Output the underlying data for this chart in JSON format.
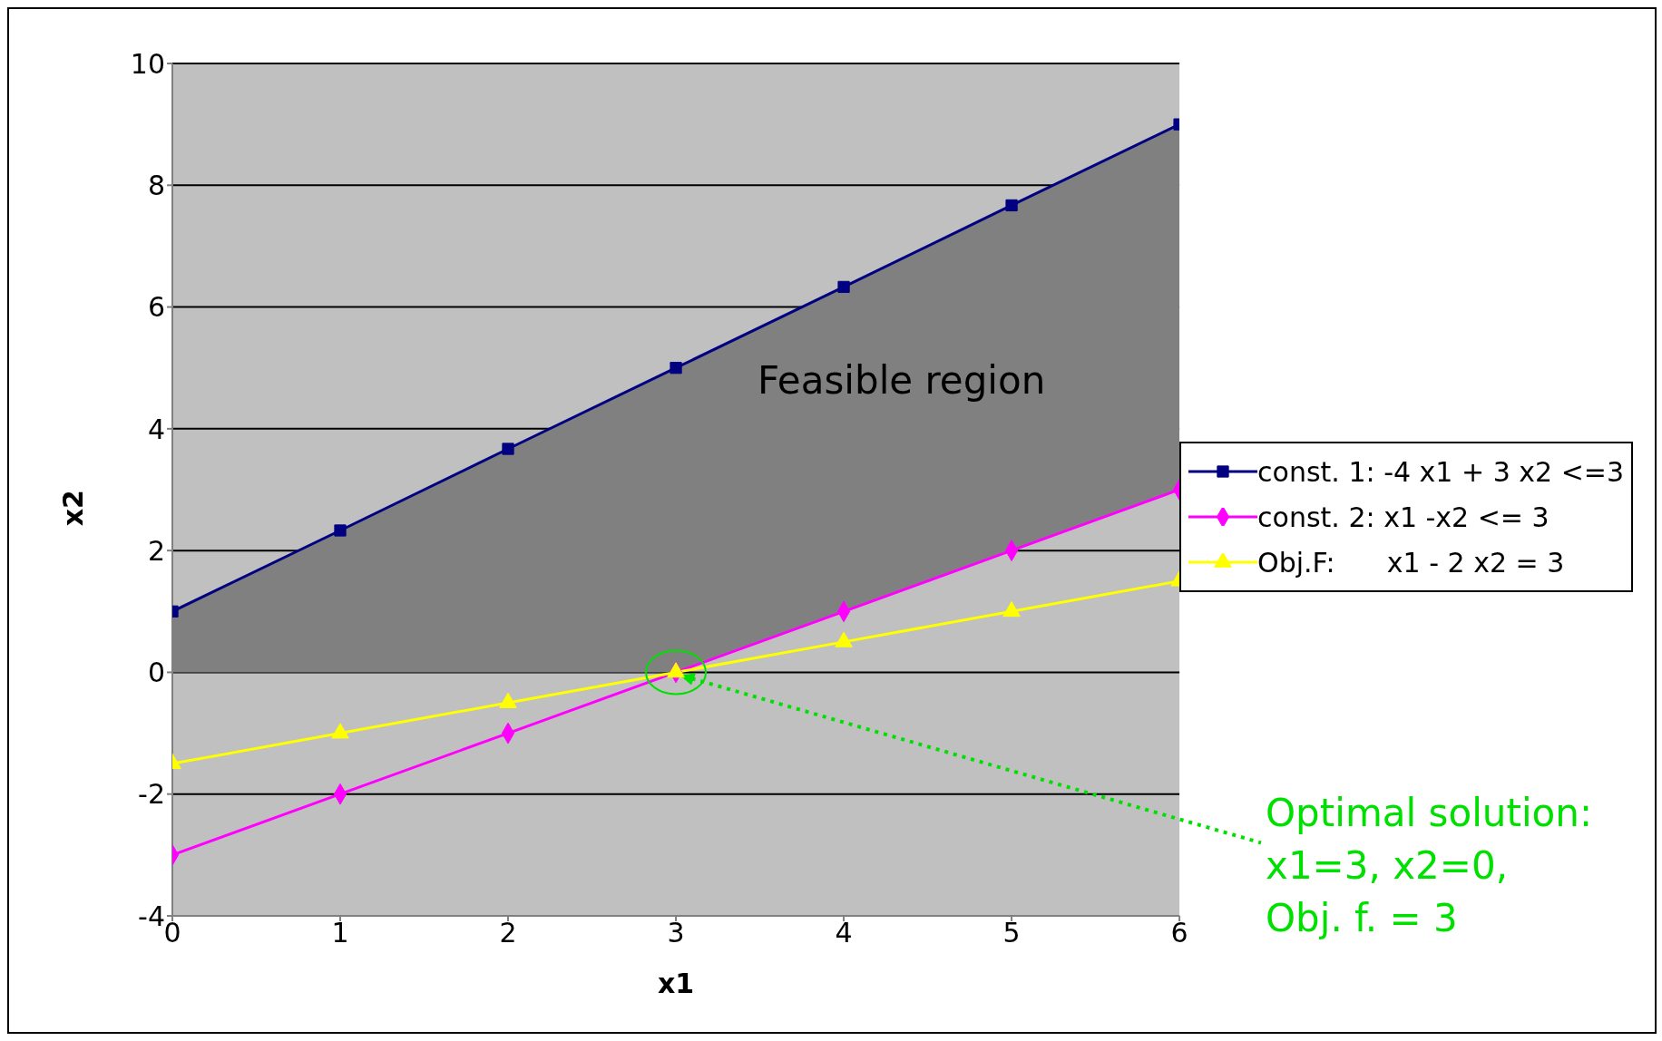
{
  "chart_data": {
    "type": "line",
    "xlabel": "x1",
    "ylabel": "x2",
    "x": [
      0,
      1,
      2,
      3,
      4,
      5,
      6
    ],
    "xlim": [
      0,
      6
    ],
    "xticks": [
      0,
      1,
      2,
      3,
      4,
      5,
      6
    ],
    "ylim": [
      -4,
      10
    ],
    "yticks": [
      -4,
      -2,
      0,
      2,
      4,
      6,
      8,
      10
    ],
    "grid": "y",
    "legend": "right",
    "series": [
      {
        "name": "const. 1: -4 x1 + 3 x2 <=3",
        "color": "#000080",
        "marker": "square",
        "values": [
          1,
          2.33,
          3.67,
          5,
          6.33,
          7.67,
          9
        ],
        "lower": [
          0,
          0,
          0,
          0,
          1,
          2,
          3
        ],
        "upper": [
          1,
          2.33,
          3.67,
          5,
          6.33,
          7.67,
          9
        ]
      },
      {
        "name": "const. 2: x1 -x2 <= 3",
        "color": "#ff00ff",
        "marker": "diamond",
        "values": [
          -3,
          -2,
          -1,
          0,
          1,
          2,
          3
        ]
      },
      {
        "name": "Obj.F:      x1 - 2 x2 = 3",
        "color": "#ffff00",
        "marker": "triangle",
        "values": [
          -1.5,
          -1,
          -0.5,
          0,
          0.5,
          1,
          1.5
        ]
      }
    ],
    "annotations": [
      "Feasible region",
      {
        "text": "Optimal solution:\nx1=3, x2=0,\nObj. f. = 3",
        "x": 3,
        "y": 0
      }
    ]
  }
}
